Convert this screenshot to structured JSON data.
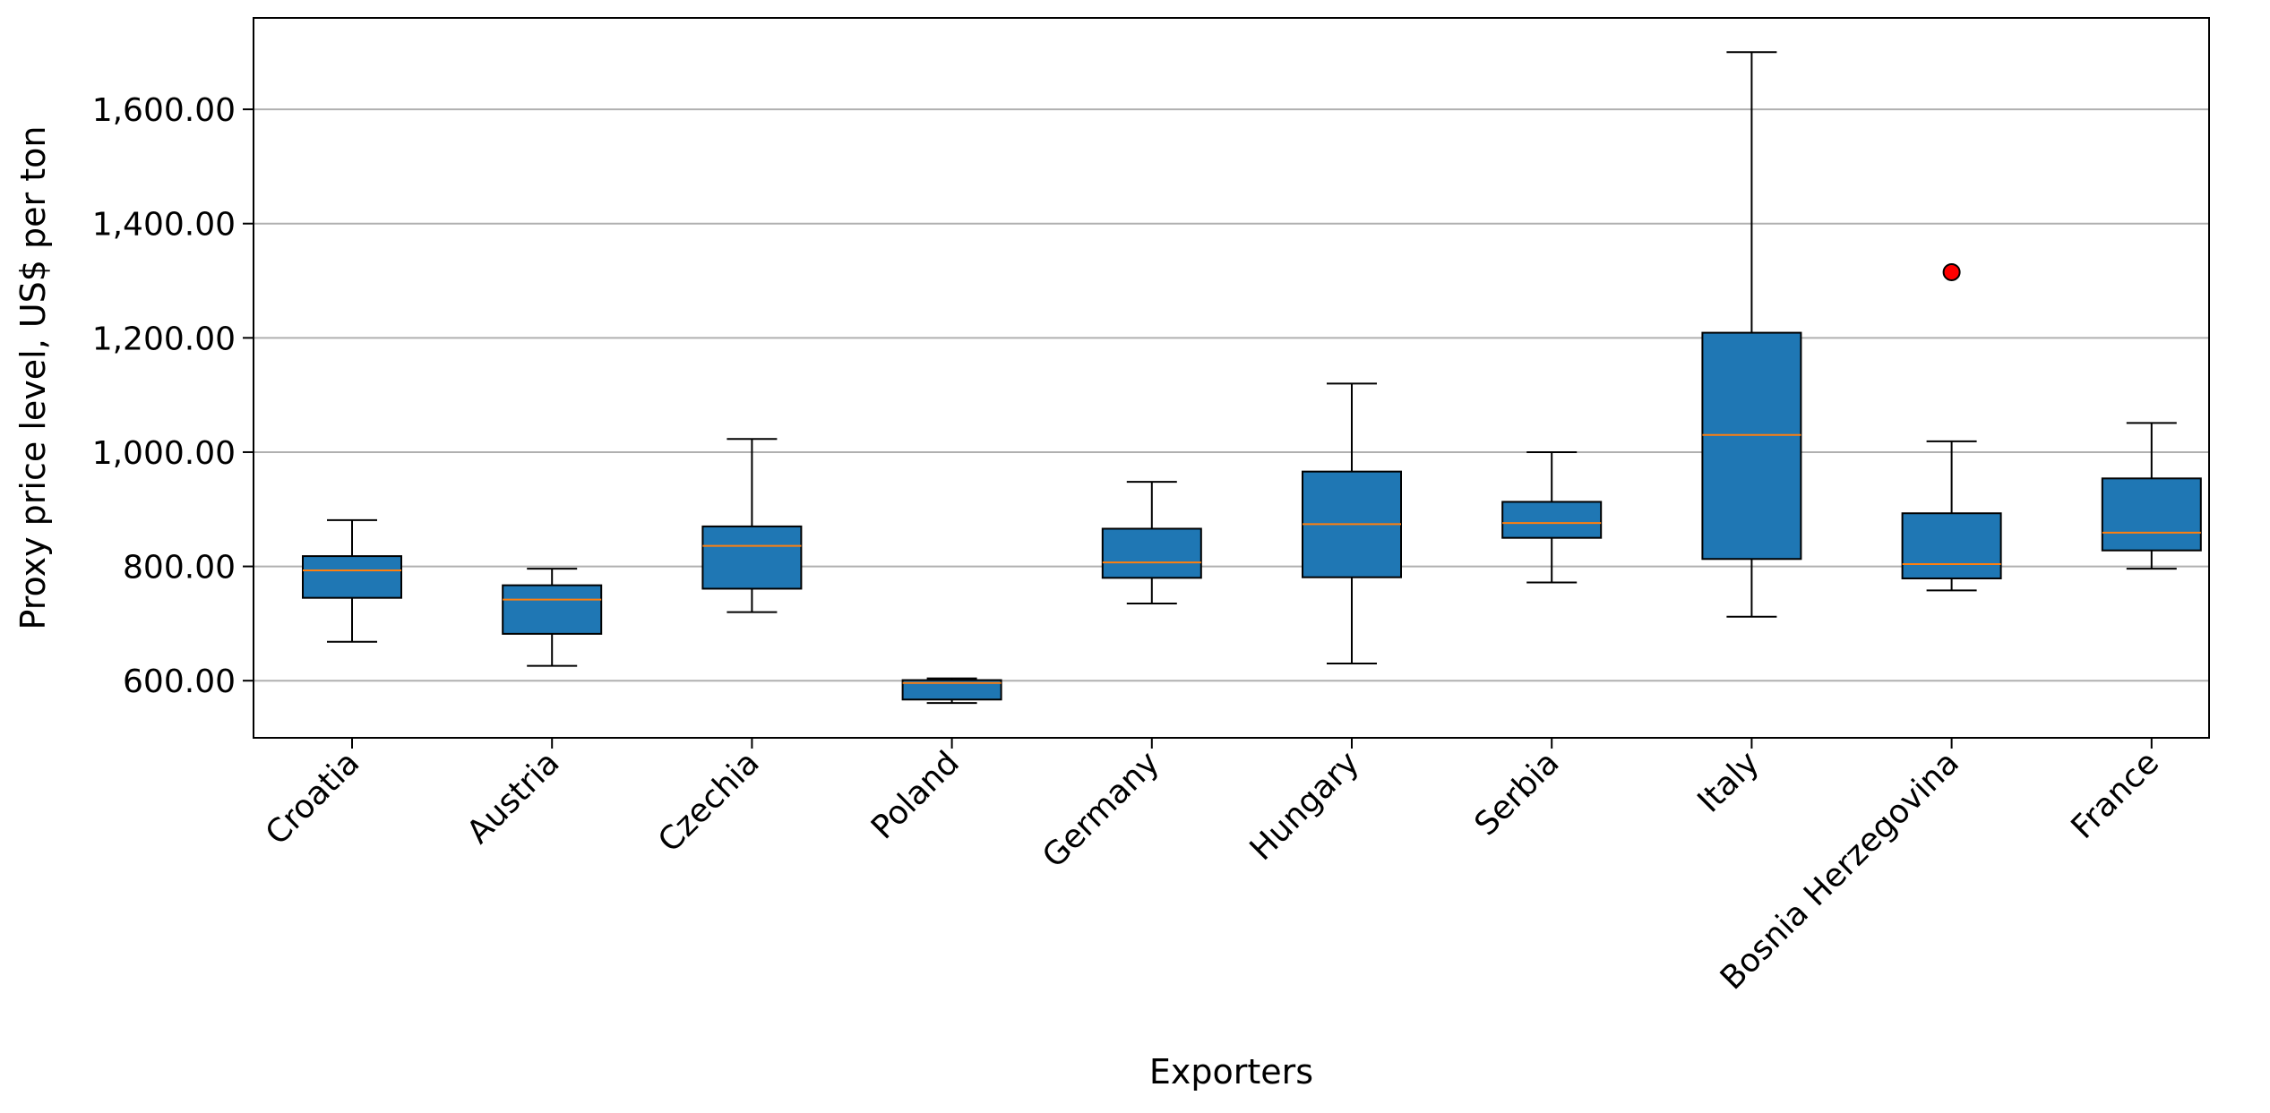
{
  "chart_data": {
    "type": "box",
    "xlabel": "Exporters",
    "ylabel": "Proxy price level, US$ per ton",
    "ylim": [
      500,
      1760
    ],
    "yticks": [
      600,
      800,
      1000,
      1200,
      1400,
      1600
    ],
    "ytick_labels": [
      "600.00",
      "800.00",
      "1,000.00",
      "1,200.00",
      "1,400.00",
      "1,600.00"
    ],
    "grid": "horizontal",
    "box_color": "#1f77b4",
    "median_color": "#ff7f0e",
    "outlier_color": "#ff0000",
    "categories": [
      "Croatia",
      "Austria",
      "Czechia",
      "Poland",
      "Germany",
      "Hungary",
      "Serbia",
      "Italy",
      "Bosnia Herzegovina",
      "France"
    ],
    "boxes": [
      {
        "category": "Croatia",
        "whisker_low": 668,
        "q1": 745,
        "median": 793,
        "q3": 818,
        "whisker_high": 881,
        "outliers": []
      },
      {
        "category": "Austria",
        "whisker_low": 626,
        "q1": 682,
        "median": 742,
        "q3": 767,
        "whisker_high": 796,
        "outliers": []
      },
      {
        "category": "Czechia",
        "whisker_low": 720,
        "q1": 761,
        "median": 836,
        "q3": 870,
        "whisker_high": 1023,
        "outliers": []
      },
      {
        "category": "Poland",
        "whisker_low": 561,
        "q1": 567,
        "median": 596,
        "q3": 601,
        "whisker_high": 604,
        "outliers": []
      },
      {
        "category": "Germany",
        "whisker_low": 735,
        "q1": 780,
        "median": 807,
        "q3": 866,
        "whisker_high": 948,
        "outliers": []
      },
      {
        "category": "Hungary",
        "whisker_low": 630,
        "q1": 781,
        "median": 874,
        "q3": 966,
        "whisker_high": 1120,
        "outliers": []
      },
      {
        "category": "Serbia",
        "whisker_low": 772,
        "q1": 850,
        "median": 876,
        "q3": 913,
        "whisker_high": 1000,
        "outliers": []
      },
      {
        "category": "Italy",
        "whisker_low": 712,
        "q1": 813,
        "median": 1030,
        "q3": 1209,
        "whisker_high": 1700,
        "outliers": []
      },
      {
        "category": "Bosnia Herzegovina",
        "whisker_low": 758,
        "q1": 779,
        "median": 804,
        "q3": 893,
        "whisker_high": 1019,
        "outliers": [
          1315
        ]
      },
      {
        "category": "France",
        "whisker_low": 796,
        "q1": 828,
        "median": 859,
        "q3": 954,
        "whisker_high": 1051,
        "outliers": []
      }
    ]
  }
}
